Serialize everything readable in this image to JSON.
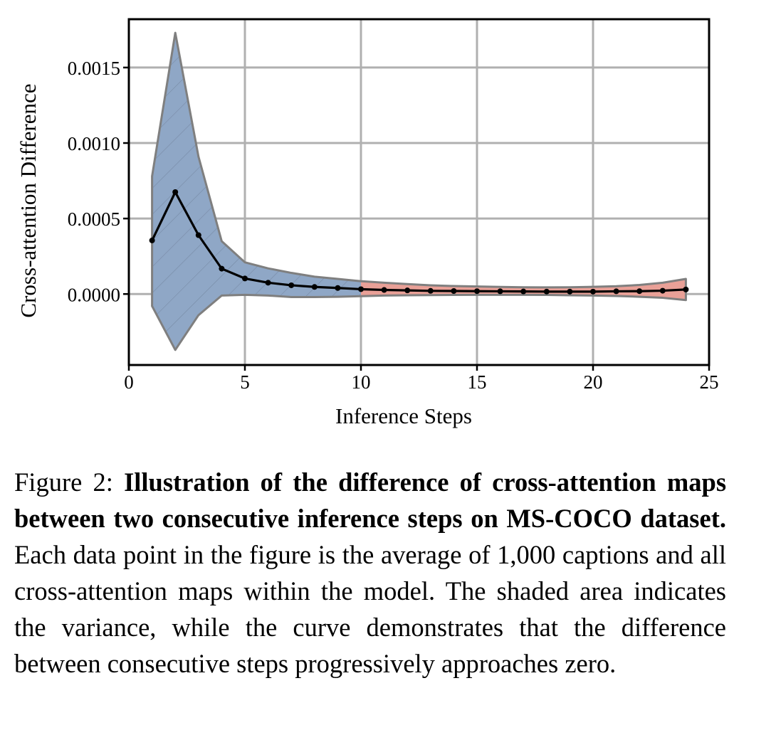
{
  "chart_data": {
    "type": "line",
    "title": "",
    "xlabel": "Inference Steps",
    "ylabel": "Cross-attention Difference",
    "xlim": [
      0,
      25
    ],
    "ylim": [
      -0.00047,
      0.00182
    ],
    "xticks": [
      0,
      5,
      10,
      15,
      20,
      25
    ],
    "yticks": [
      0.0,
      0.0005,
      0.001,
      0.0015
    ],
    "xtick_labels": [
      "0",
      "5",
      "10",
      "15",
      "20",
      "25"
    ],
    "ytick_labels": [
      "0.0000",
      "0.0005",
      "0.0010",
      "0.0015"
    ],
    "grid": true,
    "legend": "none",
    "x": [
      1,
      2,
      3,
      4,
      5,
      6,
      7,
      8,
      9,
      10,
      11,
      12,
      13,
      14,
      15,
      16,
      17,
      18,
      19,
      20,
      21,
      22,
      23,
      24
    ],
    "series": [
      {
        "values": [
          0.000355,
          0.000675,
          0.00039,
          0.000168,
          0.000103,
          7.5e-05,
          5.8e-05,
          4.7e-05,
          4e-05,
          3.2e-05,
          2.7e-05,
          2.4e-05,
          2.1e-05,
          2e-05,
          1.9e-05,
          1.8e-05,
          1.7e-05,
          1.6e-05,
          1.6e-05,
          1.6e-05,
          1.8e-05,
          1.9e-05,
          2.2e-05,
          3e-05
        ],
        "upper": [
          0.00078,
          0.00173,
          0.00091,
          0.00035,
          0.00021,
          0.00017,
          0.00014,
          0.000115,
          0.0001,
          8.5e-05,
          7.5e-05,
          6.6e-05,
          5.8e-05,
          5.3e-05,
          5e-05,
          4.7e-05,
          4.5e-05,
          4.4e-05,
          4.5e-05,
          4.8e-05,
          5.2e-05,
          6e-05,
          7.5e-05,
          0.0001
        ],
        "lower": [
          -8e-05,
          -0.00037,
          -0.00014,
          -1e-05,
          -5e-06,
          -1e-05,
          -2e-05,
          -2e-05,
          -1.8e-05,
          -1.4e-05,
          -1e-05,
          -8e-06,
          -7e-06,
          -6e-06,
          -5e-06,
          -5e-06,
          -5e-06,
          -6e-06,
          -8e-06,
          -1e-05,
          -1.3e-05,
          -1.8e-05,
          -2.5e-05,
          -4e-05
        ]
      }
    ],
    "colors": {
      "line": "#000000",
      "band_blue": "#8fa7c6",
      "band_red": "#e9a097",
      "band_edge": "#7f7f7f",
      "grid": "#b0b0b0"
    },
    "band_color_split_x": 10
  },
  "caption": {
    "label": "Figure 2:",
    "bold": "Illustration of the difference of cross-attention maps between two consecutive inference steps on MS-COCO dataset.",
    "text": "Each data point in the figure is the average of 1,000 captions and all cross-attention maps within the model.  The shaded area indicates the variance, while the curve demonstrates that the difference between consecutive steps progressively approaches zero."
  }
}
